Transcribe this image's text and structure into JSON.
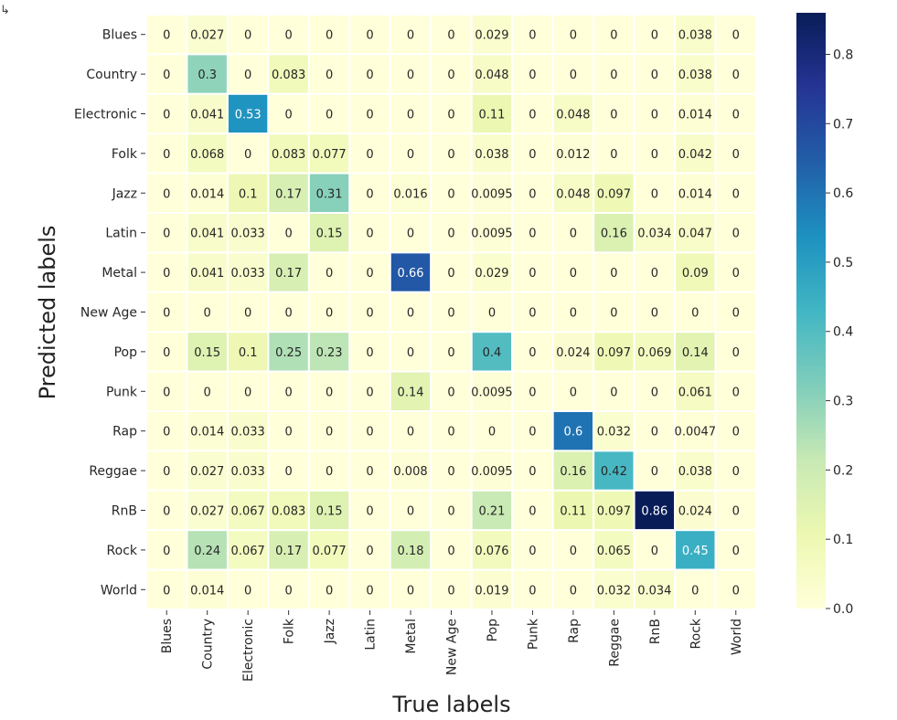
{
  "output_marker": "↳",
  "chart_data": {
    "type": "heatmap",
    "xlabel": "True labels",
    "ylabel": "Predicted labels",
    "x_categories": [
      "Blues",
      "Country",
      "Electronic",
      "Folk",
      "Jazz",
      "Latin",
      "Metal",
      "New Age",
      "Pop",
      "Punk",
      "Rap",
      "Reggae",
      "RnB",
      "Rock",
      "World"
    ],
    "y_categories": [
      "Blues",
      "Country",
      "Electronic",
      "Folk",
      "Jazz",
      "Latin",
      "Metal",
      "New Age",
      "Pop",
      "Punk",
      "Rap",
      "Reggae",
      "RnB",
      "Rock",
      "World"
    ],
    "cell_labels": [
      [
        "0",
        "0.027",
        "0",
        "0",
        "0",
        "0",
        "0",
        "0",
        "0.029",
        "0",
        "0",
        "0",
        "0",
        "0.038",
        "0"
      ],
      [
        "0",
        "0.3",
        "0",
        "0.083",
        "0",
        "0",
        "0",
        "0",
        "0.048",
        "0",
        "0",
        "0",
        "0",
        "0.038",
        "0"
      ],
      [
        "0",
        "0.041",
        "0.53",
        "0",
        "0",
        "0",
        "0",
        "0",
        "0.11",
        "0",
        "0.048",
        "0",
        "0",
        "0.014",
        "0"
      ],
      [
        "0",
        "0.068",
        "0",
        "0.083",
        "0.077",
        "0",
        "0",
        "0",
        "0.038",
        "0",
        "0.012",
        "0",
        "0",
        "0.042",
        "0"
      ],
      [
        "0",
        "0.014",
        "0.1",
        "0.17",
        "0.31",
        "0",
        "0.016",
        "0",
        "0.0095",
        "0",
        "0.048",
        "0.097",
        "0",
        "0.014",
        "0"
      ],
      [
        "0",
        "0.041",
        "0.033",
        "0",
        "0.15",
        "0",
        "0",
        "0",
        "0.0095",
        "0",
        "0",
        "0.16",
        "0.034",
        "0.047",
        "0"
      ],
      [
        "0",
        "0.041",
        "0.033",
        "0.17",
        "0",
        "0",
        "0.66",
        "0",
        "0.029",
        "0",
        "0",
        "0",
        "0",
        "0.09",
        "0"
      ],
      [
        "0",
        "0",
        "0",
        "0",
        "0",
        "0",
        "0",
        "0",
        "0",
        "0",
        "0",
        "0",
        "0",
        "0",
        "0"
      ],
      [
        "0",
        "0.15",
        "0.1",
        "0.25",
        "0.23",
        "0",
        "0",
        "0",
        "0.4",
        "0",
        "0.024",
        "0.097",
        "0.069",
        "0.14",
        "0"
      ],
      [
        "0",
        "0",
        "0",
        "0",
        "0",
        "0",
        "0.14",
        "0",
        "0.0095",
        "0",
        "0",
        "0",
        "0",
        "0.061",
        "0"
      ],
      [
        "0",
        "0.014",
        "0.033",
        "0",
        "0",
        "0",
        "0",
        "0",
        "0",
        "0",
        "0.6",
        "0.032",
        "0",
        "0.0047",
        "0"
      ],
      [
        "0",
        "0.027",
        "0.033",
        "0",
        "0",
        "0",
        "0.008",
        "0",
        "0.0095",
        "0",
        "0.16",
        "0.42",
        "0",
        "0.038",
        "0"
      ],
      [
        "0",
        "0.027",
        "0.067",
        "0.083",
        "0.15",
        "0",
        "0",
        "0",
        "0.21",
        "0",
        "0.11",
        "0.097",
        "0.86",
        "0.024",
        "0"
      ],
      [
        "0",
        "0.24",
        "0.067",
        "0.17",
        "0.077",
        "0",
        "0.18",
        "0",
        "0.076",
        "0",
        "0",
        "0.065",
        "0",
        "0.45",
        "0"
      ],
      [
        "0",
        "0.014",
        "0",
        "0",
        "0",
        "0",
        "0",
        "0",
        "0.019",
        "0",
        "0",
        "0.032",
        "0.034",
        "0",
        "0"
      ]
    ],
    "colorbar": {
      "colormap": "YlGnBu",
      "vmin": 0.0,
      "vmax": 0.86,
      "ticks": [
        "0.0",
        "0.1",
        "0.2",
        "0.3",
        "0.4",
        "0.5",
        "0.6",
        "0.7",
        "0.8"
      ]
    },
    "colors": [
      "#ffffd9",
      "#edf8b1",
      "#c7e9b4",
      "#7fcdbb",
      "#41b6c4",
      "#1d91c0",
      "#225ea8",
      "#253494",
      "#081d58"
    ],
    "grid": false,
    "legend": "none"
  }
}
